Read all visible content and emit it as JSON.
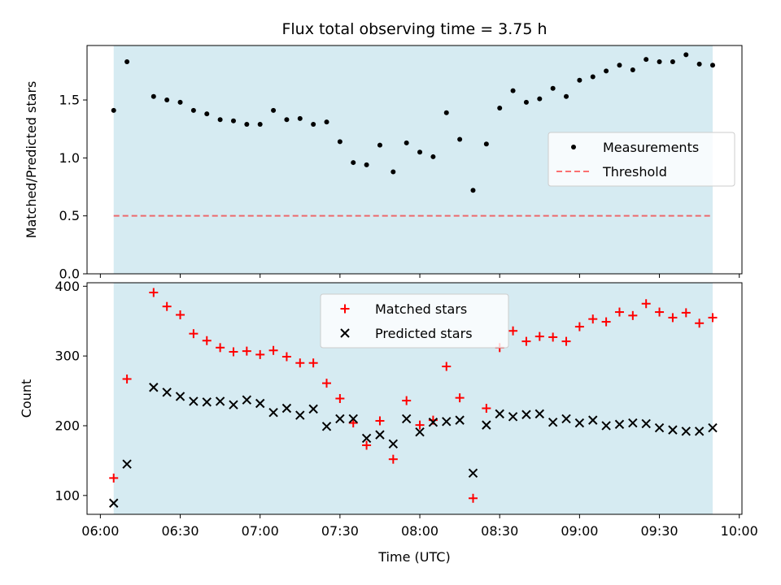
{
  "chart_data": [
    {
      "type": "scatter",
      "title": "Flux total observing time = 3.75 h",
      "xlabel": "",
      "ylabel": "Matched/Predicted stars",
      "ylim": [
        0,
        1.97
      ],
      "yticks": [
        0.0,
        0.5,
        1.0,
        1.5
      ],
      "ytick_labels": [
        "0.0",
        "0.5",
        "1.0",
        "1.5"
      ],
      "shaded_region": [
        "06:05",
        "09:50"
      ],
      "shade_color": "#add8e6",
      "threshold": 0.5,
      "threshold_color": "#ff0000",
      "legend": {
        "placement": "center-right",
        "entries": [
          "Measurements",
          "Threshold"
        ]
      },
      "series": [
        {
          "name": "Measurements",
          "marker": "dot",
          "color": "#000000",
          "x": [
            "06:05",
            "06:10",
            "06:20",
            "06:25",
            "06:30",
            "06:35",
            "06:40",
            "06:45",
            "06:50",
            "06:55",
            "07:00",
            "07:05",
            "07:10",
            "07:15",
            "07:20",
            "07:25",
            "07:30",
            "07:35",
            "07:40",
            "07:45",
            "07:50",
            "07:55",
            "08:00",
            "08:05",
            "08:10",
            "08:15",
            "08:20",
            "08:25",
            "08:30",
            "08:35",
            "08:40",
            "08:45",
            "08:50",
            "08:55",
            "09:00",
            "09:05",
            "09:10",
            "09:15",
            "09:20",
            "09:25",
            "09:30",
            "09:35",
            "09:40",
            "09:45",
            "09:50"
          ],
          "y": [
            1.41,
            1.83,
            1.53,
            1.5,
            1.48,
            1.41,
            1.38,
            1.33,
            1.32,
            1.29,
            1.29,
            1.41,
            1.33,
            1.34,
            1.29,
            1.31,
            1.14,
            0.96,
            0.94,
            1.11,
            0.88,
            1.13,
            1.05,
            1.01,
            1.39,
            1.16,
            0.72,
            1.12,
            1.43,
            1.58,
            1.48,
            1.51,
            1.6,
            1.53,
            1.67,
            1.7,
            1.75,
            1.8,
            1.76,
            1.85,
            1.83,
            1.83,
            1.89,
            1.81,
            1.8
          ]
        },
        {
          "name": "Threshold",
          "style": "dashed",
          "color": "#ff0000",
          "y": 0.5
        }
      ]
    },
    {
      "type": "scatter",
      "title": "",
      "xlabel": "Time (UTC)",
      "ylabel": "Count",
      "ylim": [
        73,
        405
      ],
      "yticks": [
        100,
        200,
        300,
        400
      ],
      "ytick_labels": [
        "100",
        "200",
        "300",
        "400"
      ],
      "xlim": [
        "05:55",
        "10:01"
      ],
      "xticks": [
        "06:00",
        "06:30",
        "07:00",
        "07:30",
        "08:00",
        "08:30",
        "09:00",
        "09:30",
        "10:00"
      ],
      "shaded_region": [
        "06:05",
        "09:50"
      ],
      "shade_color": "#add8e6",
      "legend": {
        "placement": "top-center",
        "entries": [
          "Matched stars",
          "Predicted stars"
        ]
      },
      "series": [
        {
          "name": "Matched stars",
          "marker": "plus",
          "color": "#ff0000",
          "x": [
            "06:05",
            "06:10",
            "06:20",
            "06:25",
            "06:30",
            "06:35",
            "06:40",
            "06:45",
            "06:50",
            "06:55",
            "07:00",
            "07:05",
            "07:10",
            "07:15",
            "07:20",
            "07:25",
            "07:30",
            "07:35",
            "07:40",
            "07:45",
            "07:50",
            "07:55",
            "08:00",
            "08:05",
            "08:10",
            "08:15",
            "08:20",
            "08:25",
            "08:30",
            "08:35",
            "08:40",
            "08:45",
            "08:50",
            "08:55",
            "09:00",
            "09:05",
            "09:10",
            "09:15",
            "09:20",
            "09:25",
            "09:30",
            "09:35",
            "09:40",
            "09:45",
            "09:50"
          ],
          "y": [
            125,
            267,
            391,
            371,
            359,
            332,
            322,
            312,
            306,
            307,
            302,
            308,
            299,
            290,
            290,
            261,
            239,
            204,
            172,
            207,
            152,
            236,
            201,
            208,
            285,
            240,
            96,
            225,
            312,
            336,
            321,
            328,
            327,
            321,
            342,
            353,
            349,
            363,
            358,
            375,
            363,
            355,
            362,
            347,
            355
          ]
        },
        {
          "name": "Predicted stars",
          "marker": "x",
          "color": "#000000",
          "x": [
            "06:05",
            "06:10",
            "06:20",
            "06:25",
            "06:30",
            "06:35",
            "06:40",
            "06:45",
            "06:50",
            "06:55",
            "07:00",
            "07:05",
            "07:10",
            "07:15",
            "07:20",
            "07:25",
            "07:30",
            "07:35",
            "07:40",
            "07:45",
            "07:50",
            "07:55",
            "08:00",
            "08:05",
            "08:10",
            "08:15",
            "08:20",
            "08:25",
            "08:30",
            "08:35",
            "08:40",
            "08:45",
            "08:50",
            "08:55",
            "09:00",
            "09:05",
            "09:10",
            "09:15",
            "09:20",
            "09:25",
            "09:30",
            "09:35",
            "09:40",
            "09:45",
            "09:50"
          ],
          "y": [
            89,
            145,
            255,
            248,
            242,
            235,
            234,
            235,
            230,
            237,
            232,
            219,
            225,
            215,
            224,
            199,
            210,
            210,
            182,
            187,
            174,
            210,
            191,
            205,
            206,
            208,
            132,
            201,
            217,
            213,
            216,
            217,
            205,
            210,
            204,
            208,
            200,
            202,
            204,
            203,
            197,
            194,
            192,
            192,
            197
          ]
        }
      ]
    }
  ]
}
